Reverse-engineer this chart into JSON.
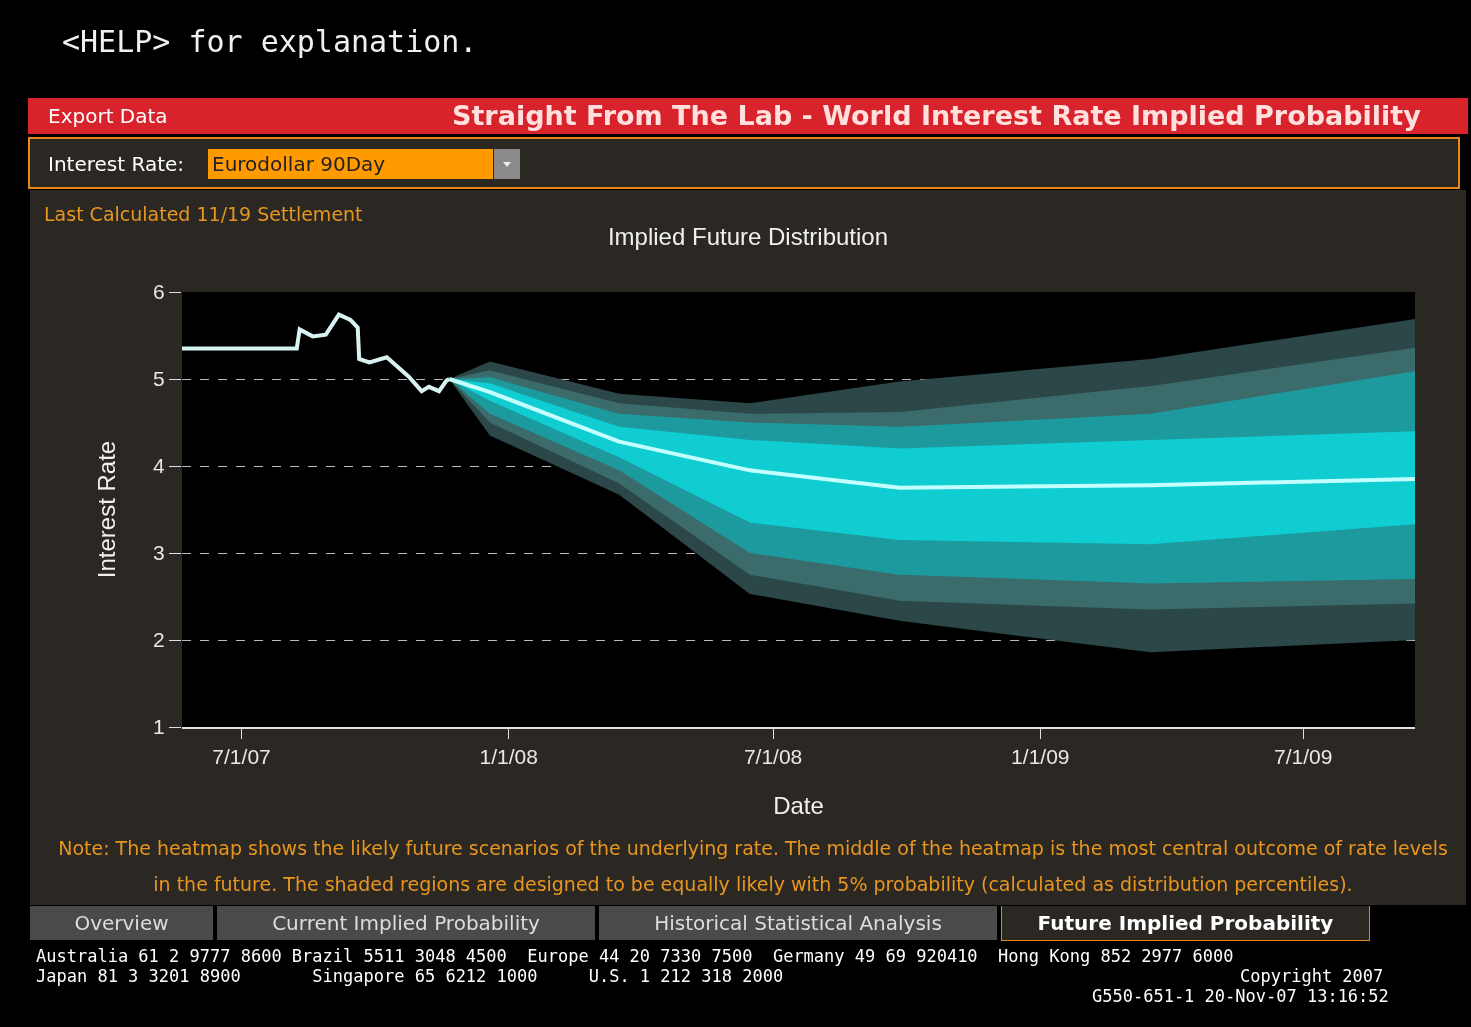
{
  "chart_data": {
    "type": "area",
    "title": "Implied Future Distribution",
    "subtitle": "Straight From The Lab - World Interest Rate Implied Probability",
    "xlabel": "Date",
    "ylabel": "Interest Rate",
    "annotations": [
      "<HELP> for explanation.",
      "Export Data",
      "Interest Rate:",
      "Eurodollar 90Day",
      "Last Calculated 11/19 Settlement",
      "Note: The heatmap shows the likely future scenarios of the underlying rate. The middle of the heatmap is the most central outcome of rate levels in the future. The shaded regions are designed to be equally likely with 5% probability (calculated as distribution percentiles).",
      "Overview",
      "Current Implied Probability",
      "Historical Statistical Analysis",
      "Future Implied Probability",
      "Australia 61 2 9777 8600 Brazil 5511 3048 4500  Europe 44 20 7330 7500  Germany 49 69 920410  Hong Kong 852 2977 6000",
      "Japan 81 3 3201 8900       Singapore 65 6212 1000     U.S. 1 212 318 2000",
      "Copyright 2007",
      "G550-651-1 20-Nov-07 13:16:52"
    ],
    "xlim": [
      "2007-05-21",
      "2009-09-16"
    ],
    "xticks": [
      {
        "value": "2007-07-01",
        "label": "7/1/07"
      },
      {
        "value": "2008-01-01",
        "label": "1/1/08"
      },
      {
        "value": "2008-07-01",
        "label": "7/1/08"
      },
      {
        "value": "2009-01-01",
        "label": "1/1/09"
      },
      {
        "value": "2009-07-01",
        "label": "7/1/09"
      }
    ],
    "ylim": [
      1,
      6
    ],
    "yticks": [
      1,
      2,
      3,
      4,
      5,
      6
    ],
    "grid": "y",
    "series": [
      {
        "color": "#2b4747",
        "x": [
          "2007-11-21",
          "2007-12-19",
          "2008-03-17",
          "2008-06-15",
          "2008-09-26",
          "2009-03-18",
          "2009-09-16"
        ],
        "values": [
          null,
          null,
          null,
          null,
          null,
          null,
          null
        ],
        "lower": [
          5.0,
          4.35,
          3.67,
          2.53,
          2.22,
          1.86,
          2.0
        ],
        "upper": [
          5.0,
          5.2,
          4.83,
          4.72,
          4.97,
          5.23,
          5.69
        ]
      },
      {
        "color": "#3b6b6b",
        "x": [
          "2007-11-21",
          "2007-12-19",
          "2008-03-17",
          "2008-06-15",
          "2008-09-26",
          "2009-03-18",
          "2009-09-16"
        ],
        "values": [
          null,
          null,
          null,
          null,
          null,
          null,
          null
        ],
        "lower": [
          5.0,
          4.5,
          3.8,
          2.75,
          2.45,
          2.35,
          2.42
        ],
        "upper": [
          5.0,
          5.1,
          4.72,
          4.6,
          4.62,
          4.92,
          5.36
        ]
      },
      {
        "color": "#1c9a9e",
        "x": [
          "2007-11-21",
          "2007-12-19",
          "2008-03-17",
          "2008-06-15",
          "2008-09-26",
          "2009-03-18",
          "2009-09-16"
        ],
        "values": [
          null,
          null,
          null,
          null,
          null,
          null,
          null
        ],
        "lower": [
          5.0,
          4.6,
          3.95,
          3.0,
          2.75,
          2.65,
          2.7
        ],
        "upper": [
          5.0,
          5.02,
          4.6,
          4.5,
          4.45,
          4.6,
          5.09
        ]
      },
      {
        "color": "#10cdd2",
        "x": [
          "2007-11-21",
          "2007-12-19",
          "2008-03-17",
          "2008-06-15",
          "2008-09-26",
          "2009-03-18",
          "2009-09-16"
        ],
        "values": [
          null,
          null,
          null,
          null,
          null,
          null,
          null
        ],
        "lower": [
          5.0,
          4.75,
          4.1,
          3.35,
          3.15,
          3.1,
          3.33
        ],
        "upper": [
          5.0,
          4.95,
          4.45,
          4.3,
          4.2,
          4.3,
          4.4
        ]
      },
      {
        "type": "line",
        "color": "#c4ffff",
        "x": [
          "2007-11-21",
          "2007-12-19",
          "2008-03-17",
          "2008-06-15",
          "2008-09-26",
          "2009-03-18",
          "2009-09-16"
        ],
        "values": [
          5.0,
          4.85,
          4.28,
          3.95,
          3.75,
          3.78,
          3.85
        ]
      },
      {
        "type": "line",
        "color": "#d8f2f2",
        "x": [
          "2007-05-21",
          "2007-08-08",
          "2007-08-10",
          "2007-08-19",
          "2007-08-28",
          "2007-09-06",
          "2007-09-14",
          "2007-09-19",
          "2007-09-20",
          "2007-09-27",
          "2007-10-09",
          "2007-10-24",
          "2007-11-02",
          "2007-11-07",
          "2007-11-14",
          "2007-11-19",
          "2007-11-21"
        ],
        "values": [
          5.35,
          5.35,
          5.57,
          5.49,
          5.51,
          5.74,
          5.68,
          5.59,
          5.23,
          5.19,
          5.25,
          5.03,
          4.86,
          4.91,
          4.86,
          4.98,
          5.0
        ]
      }
    ]
  }
}
